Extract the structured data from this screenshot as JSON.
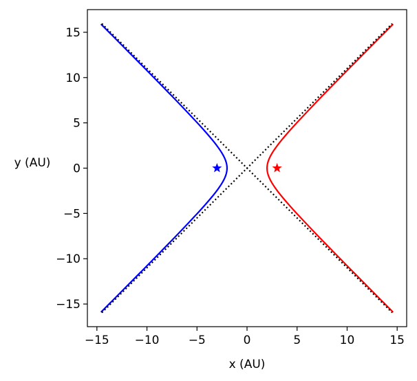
{
  "chart_data": {
    "type": "line",
    "title": "",
    "xlabel": "x (AU)",
    "ylabel": "y (AU)",
    "xlim": [
      -15.95,
      15.95
    ],
    "ylim": [
      -17.5,
      17.5
    ],
    "xticks": [
      -15,
      -10,
      -5,
      0,
      5,
      10,
      15
    ],
    "yticks": [
      -15,
      -10,
      -5,
      0,
      5,
      10,
      15
    ],
    "xtick_labels": [
      "−15",
      "−10",
      "−5",
      "0",
      "5",
      "10",
      "15"
    ],
    "ytick_labels": [
      "−15",
      "−10",
      "−5",
      "0",
      "5",
      "10",
      "15"
    ],
    "grid": false,
    "legend": "none",
    "hyperbola": {
      "a": 2.0,
      "b": 2.2,
      "y_range": [
        -15.9,
        15.9
      ]
    },
    "series": [
      {
        "branch": "right",
        "color": "#ff0000",
        "style": "solid"
      },
      {
        "branch": "left",
        "color": "#0000ff",
        "style": "solid"
      },
      {
        "branch": "asymptote",
        "slope": 1.1,
        "x_range": [
          -14.5,
          14.5
        ],
        "color": "#000000",
        "style": "dotted"
      },
      {
        "branch": "asymptote",
        "slope": -1.1,
        "x_range": [
          -14.5,
          14.5
        ],
        "color": "#000000",
        "style": "dotted"
      }
    ],
    "markers": [
      {
        "x": 3.0,
        "y": 0,
        "shape": "star",
        "color": "#ff0000"
      },
      {
        "x": -3.0,
        "y": 0,
        "shape": "star",
        "color": "#0000ff"
      }
    ]
  }
}
